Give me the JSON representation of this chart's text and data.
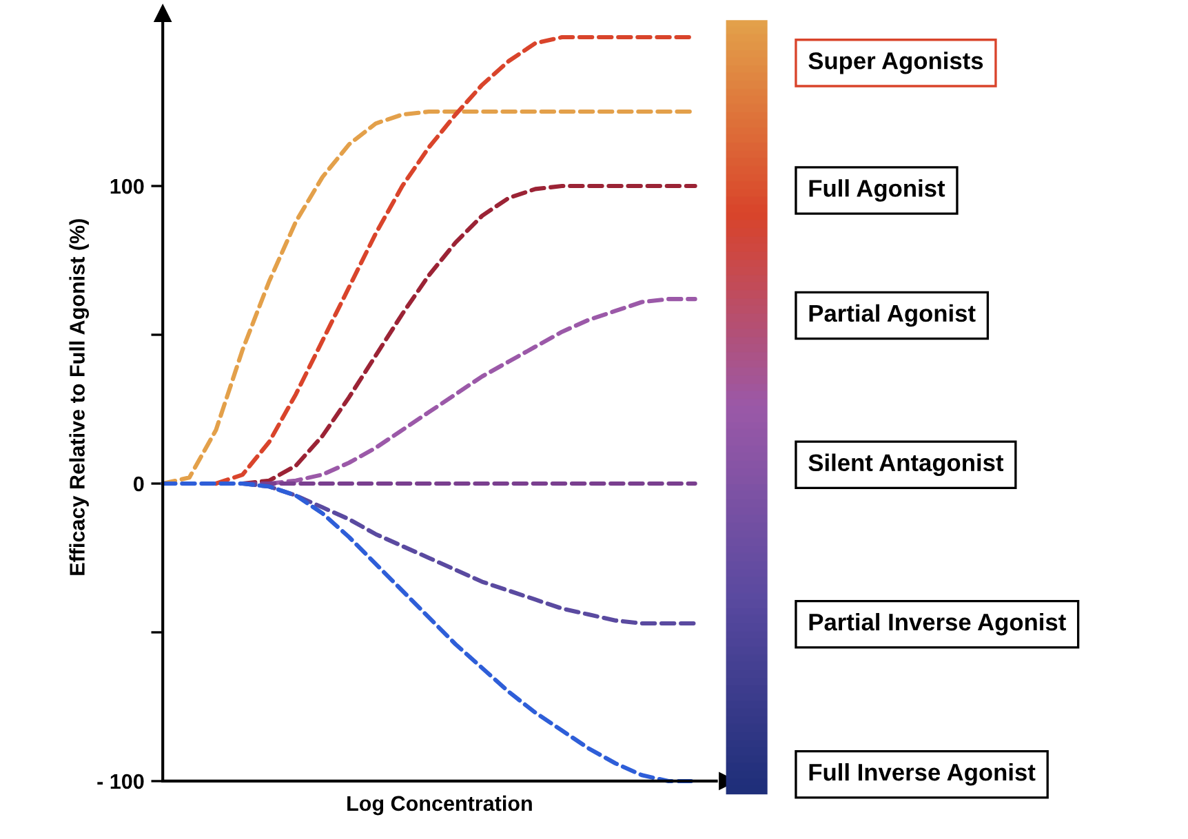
{
  "chart_data": {
    "type": "line",
    "xlabel": "Log Concentration",
    "ylabel": "Efficacy Relative to Full Agonist (%)",
    "categories": [
      null,
      null,
      null,
      null,
      null,
      null,
      null,
      null,
      null,
      null,
      null,
      null,
      null,
      null,
      null,
      null,
      null,
      null,
      null,
      null,
      null
    ],
    "series": [
      {
        "color": "#e3a04a",
        "values": [
          0,
          2,
          18,
          45,
          68,
          88,
          103,
          114,
          121,
          124,
          125,
          125,
          125,
          125,
          125,
          125,
          125,
          125,
          125,
          125,
          125
        ]
      },
      {
        "color": "#d9442b",
        "values": [
          null,
          null,
          0,
          3,
          14,
          30,
          48,
          66,
          84,
          100,
          113,
          124,
          134,
          142,
          148,
          150,
          150,
          150,
          150,
          150,
          150
        ]
      },
      {
        "color": "#9b2335",
        "values": [
          null,
          null,
          null,
          0,
          1,
          6,
          16,
          29,
          43,
          57,
          70,
          81,
          90,
          96,
          99,
          100,
          100,
          100,
          100,
          100,
          100
        ]
      },
      {
        "color": "#9b59a8",
        "values": [
          null,
          null,
          null,
          null,
          0,
          1,
          3,
          7,
          12,
          18,
          24,
          30,
          36,
          41,
          46,
          51,
          55,
          58,
          61,
          62,
          62
        ]
      },
      {
        "color": "#7a3f8f",
        "values": [
          null,
          null,
          null,
          0,
          0,
          0,
          0,
          0,
          0,
          0,
          0,
          0,
          0,
          0,
          0,
          0,
          0,
          0,
          0,
          0,
          0
        ]
      },
      {
        "color": "#5a4aa0",
        "values": [
          null,
          null,
          null,
          0,
          -1,
          -4,
          -8,
          -12,
          -17,
          -21,
          -25,
          -29,
          -33,
          -36,
          -39,
          -42,
          -44,
          -46,
          -47,
          -47,
          -47
        ]
      },
      {
        "color": "#2e5ed8",
        "values": [
          0,
          0,
          0,
          0,
          -1,
          -4,
          -10,
          -18,
          -27,
          -36,
          -45,
          -54,
          -62,
          -70,
          -77,
          -83,
          -89,
          -94,
          -98,
          -100,
          -100
        ]
      }
    ],
    "ylim": [
      -100,
      158
    ],
    "yticks": [
      {
        "value": -100,
        "label": "- 100"
      },
      {
        "value": -50,
        "label": null
      },
      0,
      {
        "value": 50,
        "label": null
      },
      100
    ],
    "line_style": "dashed",
    "marker": "none",
    "grid": false,
    "legend": false,
    "annotations": [
      "Super Agonists",
      "Full Agonist",
      "Partial Agonist",
      "Silent Antagonist",
      "Partial Inverse Agonist",
      "Full Inverse Agonist"
    ]
  }
}
